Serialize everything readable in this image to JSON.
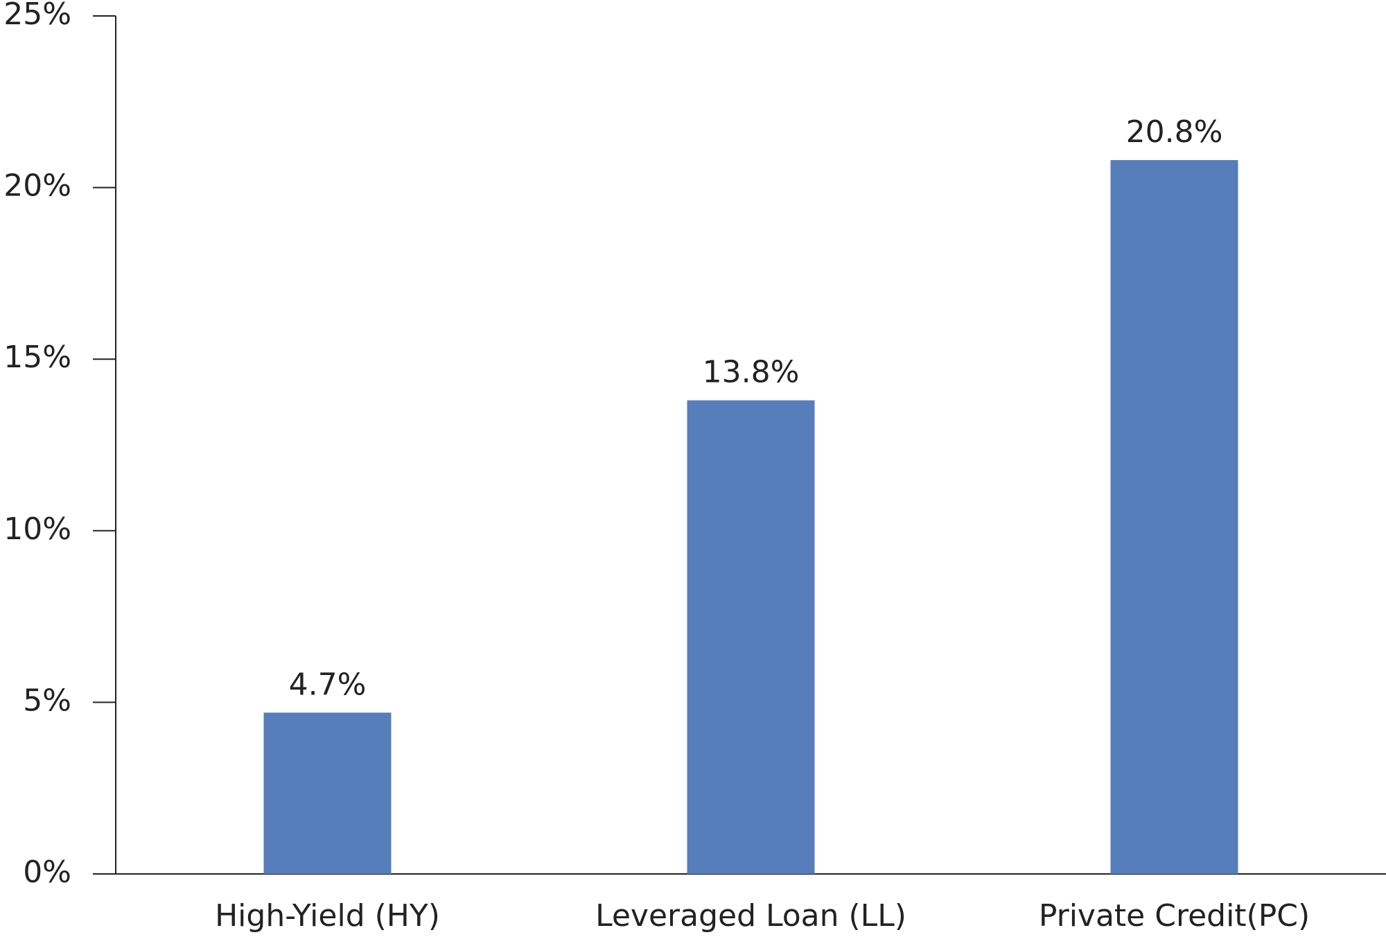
{
  "chart_data": {
    "type": "bar",
    "categories": [
      "High-Yield (HY)",
      "Leveraged Loan (LL)",
      "Private Credit(PC)"
    ],
    "values": [
      4.7,
      13.8,
      20.8
    ],
    "value_labels": [
      "4.7%",
      "13.8%",
      "20.8%"
    ],
    "color": "#557ebb",
    "ylim": [
      0,
      25
    ],
    "yticks": [
      {
        "value": 0,
        "label": "0%"
      },
      {
        "value": 5,
        "label": "5%"
      },
      {
        "value": 10,
        "label": "10%"
      },
      {
        "value": 15,
        "label": "15%"
      },
      {
        "value": 20,
        "label": "20%"
      },
      {
        "value": 25,
        "label": "25%"
      }
    ],
    "grid": false
  }
}
